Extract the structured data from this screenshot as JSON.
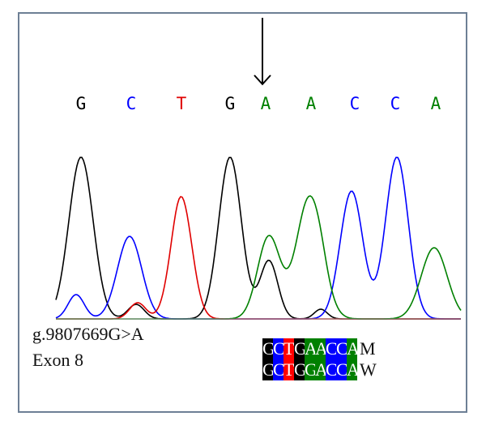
{
  "chromatogram": {
    "base_calls": [
      {
        "base": "G",
        "color": "#000000"
      },
      {
        "base": "C",
        "color": "#0000ff"
      },
      {
        "base": "T",
        "color": "#e00000"
      },
      {
        "base": "G",
        "color": "#000000"
      },
      {
        "base": "A",
        "color": "#008000"
      },
      {
        "base": "A",
        "color": "#008000"
      },
      {
        "base": "C",
        "color": "#0000ff"
      },
      {
        "base": "C",
        "color": "#0000ff"
      },
      {
        "base": "A",
        "color": "#008000"
      }
    ],
    "arrow_target_index": 4,
    "trace_colors": {
      "G": "#000000",
      "C": "#0000ff",
      "T": "#e00000",
      "A": "#008000"
    }
  },
  "annotation": {
    "mutation": "g.9807669G>A",
    "exon": "Exon 8"
  },
  "alignment": {
    "rows": [
      {
        "bases": [
          "G",
          "C",
          "T",
          "G",
          "A",
          "A",
          "C",
          "C",
          "A"
        ],
        "suffix": "M"
      },
      {
        "bases": [
          "G",
          "C",
          "T",
          "G",
          "G",
          "A",
          "C",
          "C",
          "A"
        ],
        "suffix": "W"
      }
    ],
    "column_colors": [
      "#000000",
      "#0000ff",
      "#ff0000",
      "#000000",
      "#008000",
      "#008000",
      "#0000ff",
      "#0000ff",
      "#008000"
    ]
  }
}
